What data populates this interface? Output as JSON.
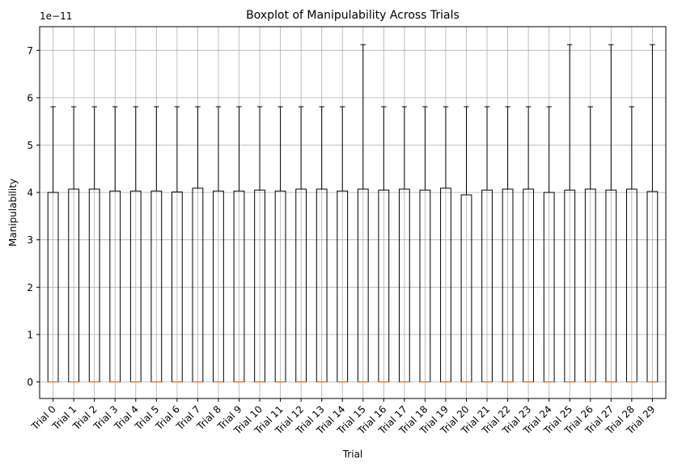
{
  "chart_data": {
    "type": "boxplot",
    "title": "Boxplot of Manipulability Across Trials",
    "xlabel": "Trial",
    "ylabel": "Manipulability",
    "y_scale_label": "1e−11",
    "ylim": [
      -0.35,
      7.5
    ],
    "yticks": [
      0,
      1,
      2,
      3,
      4,
      5,
      6,
      7
    ],
    "grid": true,
    "categories": [
      "Trial 0",
      "Trial 1",
      "Trial 2",
      "Trial 3",
      "Trial 4",
      "Trial 5",
      "Trial 6",
      "Trial 7",
      "Trial 8",
      "Trial 9",
      "Trial 10",
      "Trial 11",
      "Trial 12",
      "Trial 13",
      "Trial 14",
      "Trial 15",
      "Trial 16",
      "Trial 17",
      "Trial 18",
      "Trial 19",
      "Trial 20",
      "Trial 21",
      "Trial 22",
      "Trial 23",
      "Trial 24",
      "Trial 25",
      "Trial 26",
      "Trial 27",
      "Trial 28",
      "Trial 29"
    ],
    "boxes": [
      {
        "whisker_low": 0,
        "q1": 0,
        "median": 0,
        "q3": 4.0,
        "whisker_high": 5.81
      },
      {
        "whisker_low": 0,
        "q1": 0,
        "median": 0,
        "q3": 4.07,
        "whisker_high": 5.81
      },
      {
        "whisker_low": 0,
        "q1": 0,
        "median": 0,
        "q3": 4.07,
        "whisker_high": 5.81
      },
      {
        "whisker_low": 0,
        "q1": 0,
        "median": 0,
        "q3": 4.03,
        "whisker_high": 5.81
      },
      {
        "whisker_low": 0,
        "q1": 0,
        "median": 0,
        "q3": 4.03,
        "whisker_high": 5.81
      },
      {
        "whisker_low": 0,
        "q1": 0,
        "median": 0,
        "q3": 4.03,
        "whisker_high": 5.81
      },
      {
        "whisker_low": 0,
        "q1": 0,
        "median": 0,
        "q3": 4.01,
        "whisker_high": 5.81
      },
      {
        "whisker_low": 0,
        "q1": 0,
        "median": 0,
        "q3": 4.09,
        "whisker_high": 5.81
      },
      {
        "whisker_low": 0,
        "q1": 0,
        "median": 0,
        "q3": 4.03,
        "whisker_high": 5.81
      },
      {
        "whisker_low": 0,
        "q1": 0,
        "median": 0,
        "q3": 4.03,
        "whisker_high": 5.81
      },
      {
        "whisker_low": 0,
        "q1": 0,
        "median": 0,
        "q3": 4.05,
        "whisker_high": 5.81
      },
      {
        "whisker_low": 0,
        "q1": 0,
        "median": 0,
        "q3": 4.03,
        "whisker_high": 5.81
      },
      {
        "whisker_low": 0,
        "q1": 0,
        "median": 0,
        "q3": 4.07,
        "whisker_high": 5.81
      },
      {
        "whisker_low": 0,
        "q1": 0,
        "median": 0,
        "q3": 4.07,
        "whisker_high": 5.81
      },
      {
        "whisker_low": 0,
        "q1": 0,
        "median": 0,
        "q3": 4.03,
        "whisker_high": 5.81
      },
      {
        "whisker_low": 0,
        "q1": 0,
        "median": 0,
        "q3": 4.07,
        "whisker_high": 7.12
      },
      {
        "whisker_low": 0,
        "q1": 0,
        "median": 0,
        "q3": 4.05,
        "whisker_high": 5.81
      },
      {
        "whisker_low": 0,
        "q1": 0,
        "median": 0,
        "q3": 4.07,
        "whisker_high": 5.81
      },
      {
        "whisker_low": 0,
        "q1": 0,
        "median": 0,
        "q3": 4.05,
        "whisker_high": 5.81
      },
      {
        "whisker_low": 0,
        "q1": 0,
        "median": 0,
        "q3": 4.09,
        "whisker_high": 5.81
      },
      {
        "whisker_low": 0,
        "q1": 0,
        "median": 0,
        "q3": 3.95,
        "whisker_high": 5.81
      },
      {
        "whisker_low": 0,
        "q1": 0,
        "median": 0,
        "q3": 4.05,
        "whisker_high": 5.81
      },
      {
        "whisker_low": 0,
        "q1": 0,
        "median": 0,
        "q3": 4.07,
        "whisker_high": 5.81
      },
      {
        "whisker_low": 0,
        "q1": 0,
        "median": 0,
        "q3": 4.07,
        "whisker_high": 5.81
      },
      {
        "whisker_low": 0,
        "q1": 0,
        "median": 0,
        "q3": 4.0,
        "whisker_high": 5.81
      },
      {
        "whisker_low": 0,
        "q1": 0,
        "median": 0,
        "q3": 4.05,
        "whisker_high": 7.12
      },
      {
        "whisker_low": 0,
        "q1": 0,
        "median": 0,
        "q3": 4.07,
        "whisker_high": 5.81
      },
      {
        "whisker_low": 0,
        "q1": 0,
        "median": 0,
        "q3": 4.05,
        "whisker_high": 7.12
      },
      {
        "whisker_low": 0,
        "q1": 0,
        "median": 0,
        "q3": 4.07,
        "whisker_high": 5.81
      },
      {
        "whisker_low": 0,
        "q1": 0,
        "median": 0,
        "q3": 4.02,
        "whisker_high": 7.12
      }
    ],
    "colors": {
      "box": "#000000",
      "median": "#e07b39",
      "grid": "#b0b0b0"
    }
  }
}
